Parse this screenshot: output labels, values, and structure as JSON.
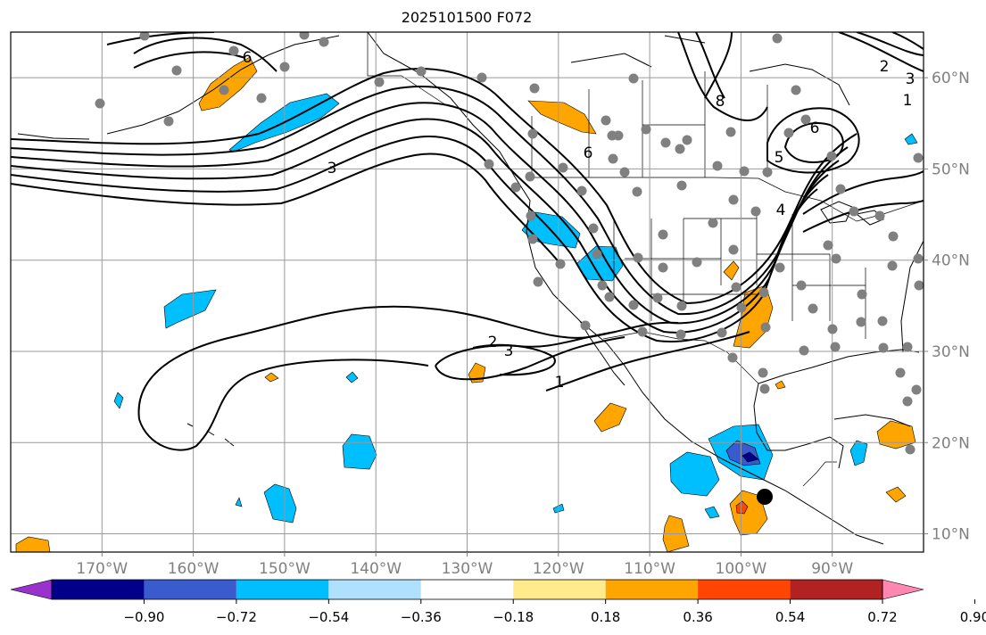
{
  "title": "2025101500 F072",
  "map": {
    "lon_range": [
      -180,
      -80
    ],
    "lat_range": [
      8,
      65
    ],
    "lon_tick_labels": [
      "170°W",
      "160°W",
      "150°W",
      "140°W",
      "130°W",
      "120°W",
      "110°W",
      "100°W",
      "90°W"
    ],
    "lon_ticks": [
      -170,
      -160,
      -150,
      -140,
      -130,
      -120,
      -110,
      -100,
      -90
    ],
    "lat_tick_labels": [
      "10°N",
      "20°N",
      "30°N",
      "40°N",
      "50°N",
      "60°N"
    ],
    "lat_ticks": [
      10,
      20,
      30,
      40,
      50,
      60
    ],
    "contour_labels": [
      "6",
      "3",
      "6",
      "6",
      "5",
      "4",
      "8",
      "2",
      "3",
      "1",
      "1",
      "2",
      "3"
    ],
    "colors": {
      "grid": "#9a9a9a",
      "tick_label": "#808080",
      "contour": "#000000",
      "station": "#808080",
      "coast": "#000000"
    }
  },
  "colorbar": {
    "tick_labels": [
      "−0.90",
      "−0.72",
      "−0.54",
      "−0.36",
      "−0.18",
      "0.18",
      "0.36",
      "0.54",
      "0.72",
      "0.90"
    ],
    "levels": [
      -0.9,
      -0.72,
      -0.54,
      -0.36,
      -0.18,
      0.18,
      0.36,
      0.54,
      0.72,
      0.9
    ],
    "colors": [
      "#9932cc",
      "#00008b",
      "#3a5bcd",
      "#00bfff",
      "#afe0fe",
      "#ffffff",
      "#ffeb8c",
      "#ffa500",
      "#ff4500",
      "#b22222",
      "#ff87b0"
    ]
  }
}
